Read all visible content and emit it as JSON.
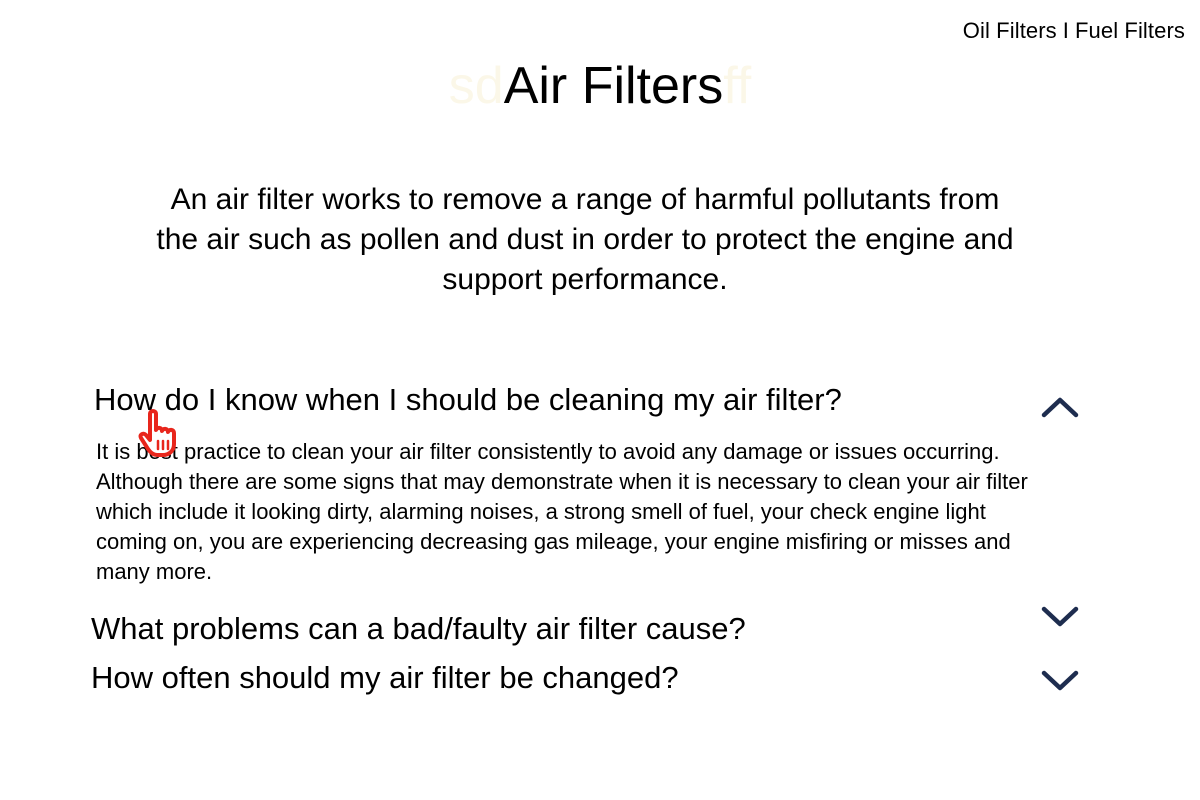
{
  "nav": {
    "link1": "Oil Filters",
    "separator": "I",
    "link2": "Fuel Filters"
  },
  "header": {
    "ghost_left": "sd",
    "title": "Air Filters",
    "ghost_right": "ff"
  },
  "intro": {
    "text": "An air filter works to remove a range of harmful pollutants from the air such as pollen and dust in order to protect the engine and support performance."
  },
  "faq": [
    {
      "question": "How do I know when I should be cleaning my air filter?",
      "expanded": true,
      "answer": "It is best practice to clean your air filter consistently to avoid any damage or issues occurring. Although there are some signs that may demonstrate when it is necessary to clean your air filter which include it looking dirty, alarming noises, a strong smell of fuel, your check engine light coming on, you are experiencing decreasing gas mileage, your engine misfiring or misses and many more."
    },
    {
      "question": "What problems can a bad/faulty air filter cause?",
      "expanded": false
    },
    {
      "question": "How often should my air filter be changed?",
      "expanded": false
    }
  ],
  "icons": {
    "expanded": "chevron-up-icon",
    "collapsed": "chevron-down-icon",
    "pointer": "hand-pointer-icon"
  },
  "colors": {
    "chevron": "#1e2d4f",
    "ghost_text": "#fbf7e8",
    "cursor_outline": "#e8261c"
  }
}
